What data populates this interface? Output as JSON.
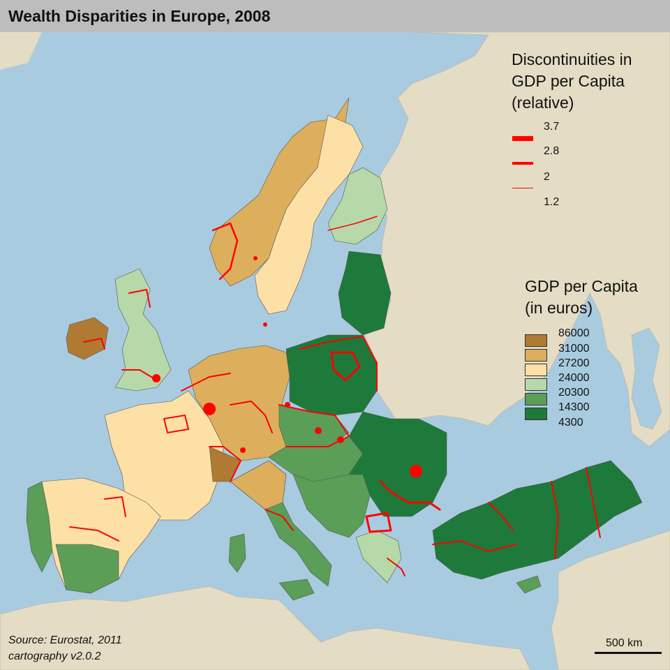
{
  "title": "Wealth Disparities in Europe, 2008",
  "colors": {
    "sea": "#a9cbe0",
    "land_outside": "#e4dcc4",
    "title_bar": "#bdbdbd",
    "discontinuity": "#ff0000",
    "region_border": "#555555"
  },
  "discontinuity_legend": {
    "title_lines": [
      "Discontinuities in",
      "GDP per Capita",
      "(relative)"
    ],
    "values": [
      "3.7",
      "2.8",
      "2",
      "1.2"
    ]
  },
  "gdp_legend": {
    "title_lines": [
      "GDP per Capita",
      "(in euros)"
    ],
    "classes": [
      {
        "label": "86000",
        "color": "#b07a33"
      },
      {
        "label": "31000",
        "color": "#ddae5c"
      },
      {
        "label": "27200",
        "color": "#fde0a5"
      },
      {
        "label": "24000",
        "color": "#b7d8a8"
      },
      {
        "label": "20300",
        "color": "#5a9e58"
      },
      {
        "label": "14300",
        "color": "#1e7a3a"
      },
      {
        "label": "4300",
        "color": ""
      }
    ]
  },
  "source_lines": [
    "Source: Eurostat, 2011",
    "cartography v2.0.2"
  ],
  "scale_bar": {
    "label": "500 km"
  }
}
